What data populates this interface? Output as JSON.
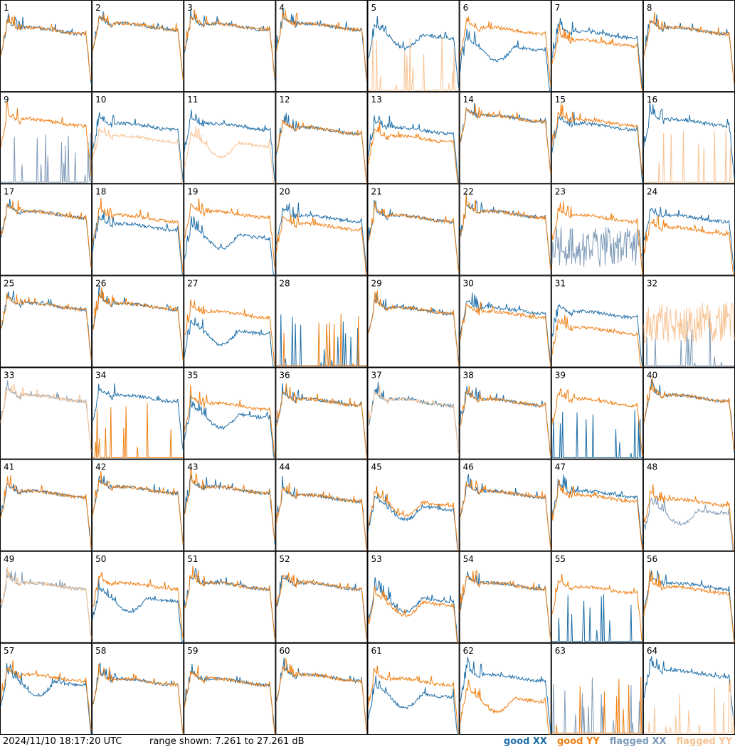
{
  "footer": {
    "timestamp": "2024/11/10 18:17:20 UTC",
    "range_text": "range shown: 7.261 to 27.261 dB",
    "legend": [
      {
        "label": "good XX",
        "color": "#1f6fa8"
      },
      {
        "label": "good YY",
        "color": "#f07f12"
      },
      {
        "label": "flagged XX",
        "color": "#7e9bb8"
      },
      {
        "label": "flagged YY",
        "color": "#f8c394"
      }
    ]
  },
  "chart_data": {
    "type": "line",
    "title": "",
    "xlabel": "",
    "ylabel": "",
    "ylim": [
      7.261,
      27.261
    ],
    "grid_layout": "8x8 panels",
    "series_colors": {
      "good_xx": "#1f6fa8",
      "good_yy": "#f07f12",
      "flagged_xx": "#7e9bb8",
      "flagged_yy": "#f8c394"
    },
    "panels": [
      {
        "label": "1",
        "xx": {
          "state": "good",
          "shape": "normal",
          "level": 22
        },
        "yy": {
          "state": "good",
          "shape": "normal",
          "level": 22
        }
      },
      {
        "label": "2",
        "xx": {
          "state": "good",
          "shape": "normal",
          "level": 23
        },
        "yy": {
          "state": "good",
          "shape": "normal",
          "level": 23
        }
      },
      {
        "label": "3",
        "xx": {
          "state": "good",
          "shape": "normal",
          "level": 23
        },
        "yy": {
          "state": "good",
          "shape": "normal",
          "level": 23
        }
      },
      {
        "label": "4",
        "xx": {
          "state": "good",
          "shape": "normal",
          "level": 23
        },
        "yy": {
          "state": "good",
          "shape": "normal",
          "level": 23
        }
      },
      {
        "label": "5",
        "xx": {
          "state": "good",
          "shape": "dip",
          "level": 21
        },
        "yy": {
          "state": "flagged",
          "shape": "spikes",
          "level": 8
        }
      },
      {
        "label": "6",
        "xx": {
          "state": "good",
          "shape": "dip",
          "level": 18
        },
        "yy": {
          "state": "good",
          "shape": "normal",
          "level": 22
        }
      },
      {
        "label": "7",
        "xx": {
          "state": "good",
          "shape": "normal",
          "level": 21
        },
        "yy": {
          "state": "good",
          "shape": "normal",
          "level": 19
        }
      },
      {
        "label": "8",
        "xx": {
          "state": "good",
          "shape": "normal",
          "level": 22
        },
        "yy": {
          "state": "good",
          "shape": "normal",
          "level": 22
        }
      },
      {
        "label": "9",
        "xx": {
          "state": "flagged",
          "shape": "spikes",
          "level": 8
        },
        "yy": {
          "state": "good",
          "shape": "normal",
          "level": 22
        }
      },
      {
        "label": "10",
        "xx": {
          "state": "good",
          "shape": "normal",
          "level": 21
        },
        "yy": {
          "state": "flagged",
          "shape": "normal",
          "level": 18
        }
      },
      {
        "label": "11",
        "xx": {
          "state": "good",
          "shape": "normal",
          "level": 21
        },
        "yy": {
          "state": "flagged",
          "shape": "dip",
          "level": 17
        }
      },
      {
        "label": "12",
        "xx": {
          "state": "good",
          "shape": "normal",
          "level": 20
        },
        "yy": {
          "state": "good",
          "shape": "normal",
          "level": 20
        }
      },
      {
        "label": "13",
        "xx": {
          "state": "good",
          "shape": "normal",
          "level": 20
        },
        "yy": {
          "state": "good",
          "shape": "normal",
          "level": 18
        }
      },
      {
        "label": "14",
        "xx": {
          "state": "good",
          "shape": "normal",
          "level": 23
        },
        "yy": {
          "state": "good",
          "shape": "normal",
          "level": 23
        }
      },
      {
        "label": "15",
        "xx": {
          "state": "good",
          "shape": "normal",
          "level": 21
        },
        "yy": {
          "state": "good",
          "shape": "normal",
          "level": 22
        }
      },
      {
        "label": "16",
        "xx": {
          "state": "good",
          "shape": "normal",
          "level": 22
        },
        "yy": {
          "state": "flagged",
          "shape": "spikes",
          "level": 8
        }
      },
      {
        "label": "17",
        "xx": {
          "state": "good",
          "shape": "normal",
          "level": 22
        },
        "yy": {
          "state": "good",
          "shape": "normal",
          "level": 22
        }
      },
      {
        "label": "18",
        "xx": {
          "state": "good",
          "shape": "normal",
          "level": 19
        },
        "yy": {
          "state": "good",
          "shape": "normal",
          "level": 21
        }
      },
      {
        "label": "19",
        "xx": {
          "state": "good",
          "shape": "dip",
          "level": 17
        },
        "yy": {
          "state": "good",
          "shape": "normal",
          "level": 22
        }
      },
      {
        "label": "20",
        "xx": {
          "state": "good",
          "shape": "normal",
          "level": 21
        },
        "yy": {
          "state": "good",
          "shape": "normal",
          "level": 19
        }
      },
      {
        "label": "21",
        "xx": {
          "state": "good",
          "shape": "normal",
          "level": 21
        },
        "yy": {
          "state": "good",
          "shape": "normal",
          "level": 21
        }
      },
      {
        "label": "22",
        "xx": {
          "state": "good",
          "shape": "normal",
          "level": 22
        },
        "yy": {
          "state": "good",
          "shape": "normal",
          "level": 22
        }
      },
      {
        "label": "23",
        "xx": {
          "state": "flagged",
          "shape": "noisy",
          "level": 14
        },
        "yy": {
          "state": "good",
          "shape": "normal",
          "level": 21
        }
      },
      {
        "label": "24",
        "xx": {
          "state": "good",
          "shape": "normal",
          "level": 21
        },
        "yy": {
          "state": "good",
          "shape": "normal",
          "level": 18
        }
      },
      {
        "label": "25",
        "xx": {
          "state": "good",
          "shape": "normal",
          "level": 22
        },
        "yy": {
          "state": "good",
          "shape": "normal",
          "level": 22
        }
      },
      {
        "label": "26",
        "xx": {
          "state": "good",
          "shape": "normal",
          "level": 22
        },
        "yy": {
          "state": "good",
          "shape": "normal",
          "level": 22
        }
      },
      {
        "label": "27",
        "xx": {
          "state": "good",
          "shape": "dip",
          "level": 16
        },
        "yy": {
          "state": "good",
          "shape": "normal",
          "level": 20
        }
      },
      {
        "label": "28",
        "xx": {
          "state": "good",
          "shape": "spikes",
          "level": 8
        },
        "yy": {
          "state": "good",
          "shape": "spikes",
          "level": 8
        }
      },
      {
        "label": "29",
        "xx": {
          "state": "good",
          "shape": "normal",
          "level": 21
        },
        "yy": {
          "state": "good",
          "shape": "normal",
          "level": 21
        }
      },
      {
        "label": "30",
        "xx": {
          "state": "good",
          "shape": "normal",
          "level": 21
        },
        "yy": {
          "state": "good",
          "shape": "normal",
          "level": 20
        }
      },
      {
        "label": "31",
        "xx": {
          "state": "good",
          "shape": "normal",
          "level": 20
        },
        "yy": {
          "state": "good",
          "shape": "normal",
          "level": 16
        }
      },
      {
        "label": "32",
        "xx": {
          "state": "flagged",
          "shape": "spikes",
          "level": 8
        },
        "yy": {
          "state": "flagged",
          "shape": "noisy",
          "level": 18
        }
      },
      {
        "label": "33",
        "xx": {
          "state": "flagged",
          "shape": "normal",
          "level": 22
        },
        "yy": {
          "state": "flagged",
          "shape": "normal",
          "level": 22
        }
      },
      {
        "label": "34",
        "xx": {
          "state": "good",
          "shape": "normal",
          "level": 22
        },
        "yy": {
          "state": "good",
          "shape": "spikes",
          "level": 8
        }
      },
      {
        "label": "35",
        "xx": {
          "state": "good",
          "shape": "dip",
          "level": 18
        },
        "yy": {
          "state": "good",
          "shape": "normal",
          "level": 20
        }
      },
      {
        "label": "36",
        "xx": {
          "state": "good",
          "shape": "normal",
          "level": 21
        },
        "yy": {
          "state": "good",
          "shape": "normal",
          "level": 21
        }
      },
      {
        "label": "37",
        "xx": {
          "state": "good",
          "shape": "normal",
          "level": 21
        },
        "yy": {
          "state": "flagged",
          "shape": "normal",
          "level": 21
        }
      },
      {
        "label": "38",
        "xx": {
          "state": "good",
          "shape": "normal",
          "level": 21
        },
        "yy": {
          "state": "good",
          "shape": "normal",
          "level": 21
        }
      },
      {
        "label": "39",
        "xx": {
          "state": "good",
          "shape": "spikes",
          "level": 8
        },
        "yy": {
          "state": "good",
          "shape": "normal",
          "level": 21
        }
      },
      {
        "label": "40",
        "xx": {
          "state": "good",
          "shape": "normal",
          "level": 22
        },
        "yy": {
          "state": "good",
          "shape": "normal",
          "level": 22
        }
      },
      {
        "label": "41",
        "xx": {
          "state": "good",
          "shape": "normal",
          "level": 21
        },
        "yy": {
          "state": "good",
          "shape": "normal",
          "level": 21
        }
      },
      {
        "label": "42",
        "xx": {
          "state": "good",
          "shape": "normal",
          "level": 22
        },
        "yy": {
          "state": "good",
          "shape": "normal",
          "level": 22
        }
      },
      {
        "label": "43",
        "xx": {
          "state": "good",
          "shape": "normal",
          "level": 22
        },
        "yy": {
          "state": "good",
          "shape": "normal",
          "level": 22
        }
      },
      {
        "label": "44",
        "xx": {
          "state": "good",
          "shape": "normal",
          "level": 20
        },
        "yy": {
          "state": "good",
          "shape": "normal",
          "level": 20
        }
      },
      {
        "label": "45",
        "xx": {
          "state": "good",
          "shape": "dip",
          "level": 18
        },
        "yy": {
          "state": "good",
          "shape": "dip",
          "level": 19
        }
      },
      {
        "label": "46",
        "xx": {
          "state": "good",
          "shape": "normal",
          "level": 21
        },
        "yy": {
          "state": "good",
          "shape": "normal",
          "level": 21
        }
      },
      {
        "label": "47",
        "xx": {
          "state": "good",
          "shape": "normal",
          "level": 21
        },
        "yy": {
          "state": "good",
          "shape": "normal",
          "level": 20
        }
      },
      {
        "label": "48",
        "xx": {
          "state": "flagged",
          "shape": "dip",
          "level": 17
        },
        "yy": {
          "state": "good",
          "shape": "normal",
          "level": 19
        }
      },
      {
        "label": "49",
        "xx": {
          "state": "flagged",
          "shape": "normal",
          "level": 21
        },
        "yy": {
          "state": "flagged",
          "shape": "normal",
          "level": 21
        }
      },
      {
        "label": "50",
        "xx": {
          "state": "good",
          "shape": "dip",
          "level": 18
        },
        "yy": {
          "state": "good",
          "shape": "normal",
          "level": 21
        }
      },
      {
        "label": "51",
        "xx": {
          "state": "good",
          "shape": "normal",
          "level": 21
        },
        "yy": {
          "state": "good",
          "shape": "normal",
          "level": 21
        }
      },
      {
        "label": "52",
        "xx": {
          "state": "good",
          "shape": "normal",
          "level": 21
        },
        "yy": {
          "state": "good",
          "shape": "normal",
          "level": 21
        }
      },
      {
        "label": "53",
        "xx": {
          "state": "good",
          "shape": "dip",
          "level": 18
        },
        "yy": {
          "state": "good",
          "shape": "dip",
          "level": 17
        }
      },
      {
        "label": "54",
        "xx": {
          "state": "good",
          "shape": "normal",
          "level": 21
        },
        "yy": {
          "state": "good",
          "shape": "normal",
          "level": 21
        }
      },
      {
        "label": "55",
        "xx": {
          "state": "good",
          "shape": "spikes",
          "level": 8
        },
        "yy": {
          "state": "good",
          "shape": "normal",
          "level": 20
        }
      },
      {
        "label": "56",
        "xx": {
          "state": "good",
          "shape": "normal",
          "level": 21
        },
        "yy": {
          "state": "good",
          "shape": "normal",
          "level": 20
        }
      },
      {
        "label": "57",
        "xx": {
          "state": "good",
          "shape": "dip",
          "level": 20
        },
        "yy": {
          "state": "good",
          "shape": "normal",
          "level": 21
        }
      },
      {
        "label": "58",
        "xx": {
          "state": "good",
          "shape": "normal",
          "level": 20
        },
        "yy": {
          "state": "good",
          "shape": "normal",
          "level": 20
        }
      },
      {
        "label": "59",
        "xx": {
          "state": "good",
          "shape": "normal",
          "level": 20
        },
        "yy": {
          "state": "good",
          "shape": "normal",
          "level": 20
        }
      },
      {
        "label": "60",
        "xx": {
          "state": "good",
          "shape": "normal",
          "level": 21
        },
        "yy": {
          "state": "good",
          "shape": "normal",
          "level": 21
        }
      },
      {
        "label": "61",
        "xx": {
          "state": "good",
          "shape": "dip",
          "level": 17
        },
        "yy": {
          "state": "good",
          "shape": "normal",
          "level": 20
        }
      },
      {
        "label": "62",
        "xx": {
          "state": "good",
          "shape": "normal",
          "level": 21
        },
        "yy": {
          "state": "good",
          "shape": "dip",
          "level": 16
        }
      },
      {
        "label": "63",
        "xx": {
          "state": "flagged",
          "shape": "spikes",
          "level": 8
        },
        "yy": {
          "state": "good",
          "shape": "spikes",
          "level": 8
        }
      },
      {
        "label": "64",
        "xx": {
          "state": "good",
          "shape": "normal",
          "level": 22
        },
        "yy": {
          "state": "flagged",
          "shape": "spikes",
          "level": 7.5
        }
      }
    ]
  }
}
